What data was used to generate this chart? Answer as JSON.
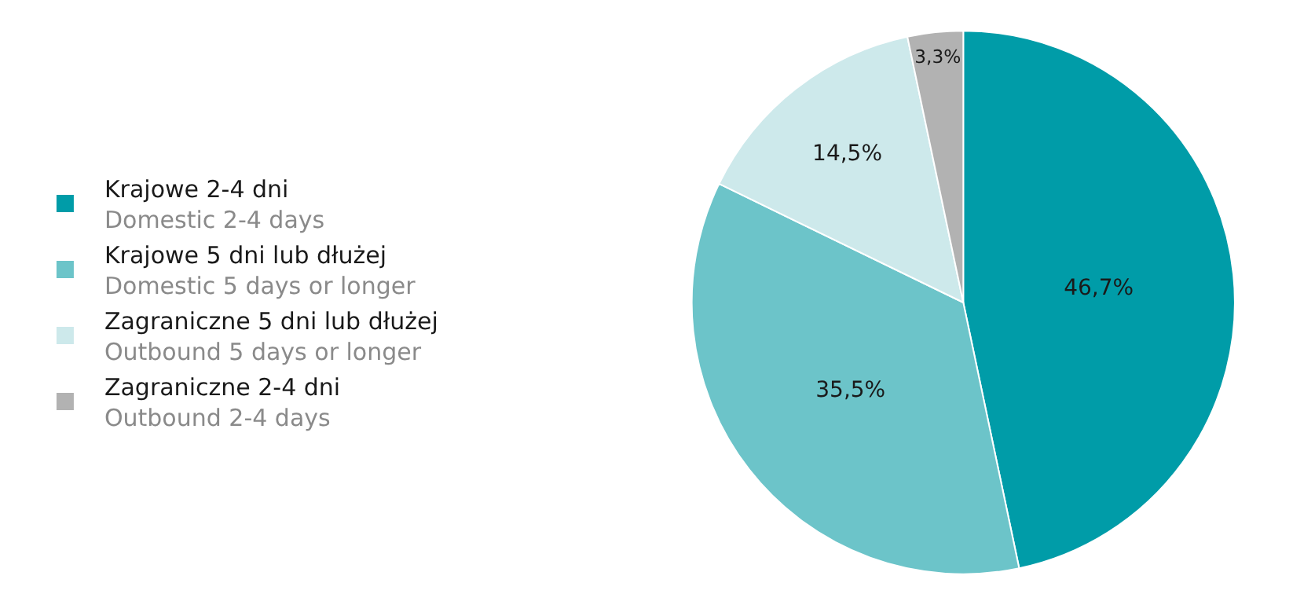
{
  "chart_data": {
    "type": "pie",
    "categories": [
      "Krajowe 2-4 dni\nDomestic 2-4 days",
      "Krajowe 5 dni lub dłużej\nDomestic 5 days or longer",
      "Zagraniczne 5 dni lub dłużej\nOutbound 5 days or longer",
      "Zagraniczne 2-4 dni\nOutbound 2-4 days"
    ],
    "values": [
      46.7,
      35.5,
      14.5,
      3.3
    ],
    "value_labels": [
      "46,7%",
      "35,5%",
      "14,5%",
      "3,3%"
    ],
    "colors": [
      "#009ca8",
      "#6cc4c9",
      "#cde9eb",
      "#b2b2b2"
    ],
    "legend": "left"
  }
}
